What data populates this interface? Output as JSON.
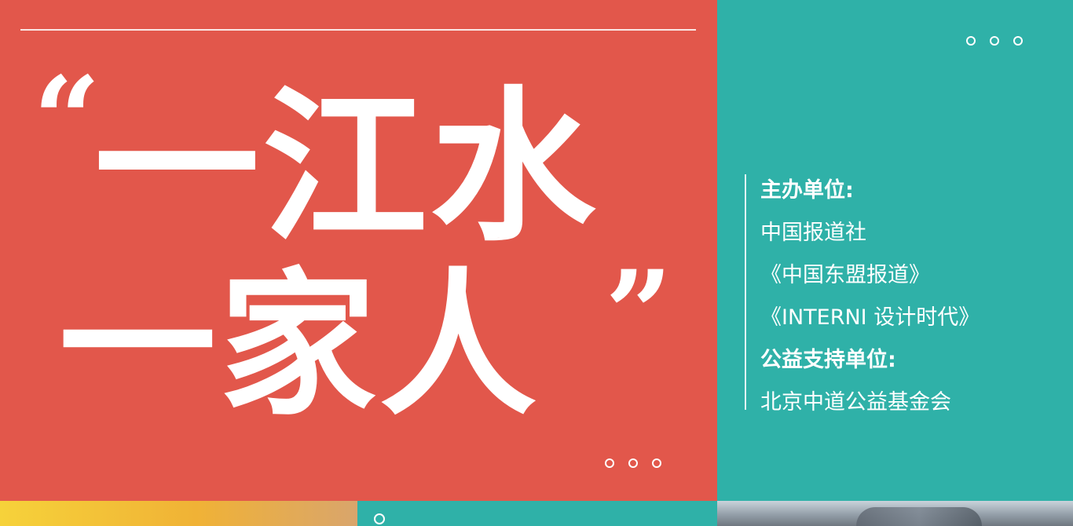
{
  "title": {
    "quote_open": "“",
    "line1": "一江水",
    "line2": "一家人",
    "quote_close": "”"
  },
  "info": {
    "organizer_label": "主办单位:",
    "organizer_1": "中国报道社",
    "organizer_2": "《中国东盟报道》",
    "organizer_3": "《INTERNI 设计时代》",
    "supporter_label": "公益支持单位:",
    "supporter_1": "北京中道公益基金会"
  },
  "colors": {
    "red_panel": "#e2574b",
    "teal_panel": "#2fb1a8",
    "text": "#ffffff"
  }
}
